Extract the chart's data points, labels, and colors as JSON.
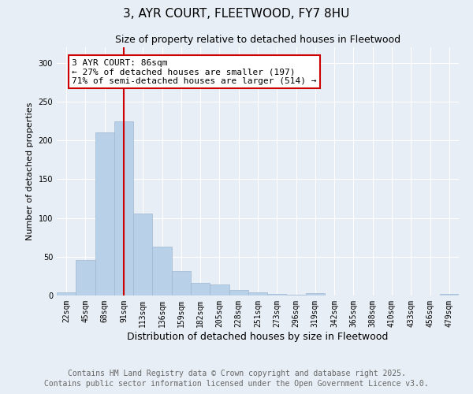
{
  "title": "3, AYR COURT, FLEETWOOD, FY7 8HU",
  "subtitle": "Size of property relative to detached houses in Fleetwood",
  "xlabel": "Distribution of detached houses by size in Fleetwood",
  "ylabel": "Number of detached properties",
  "categories": [
    "22sqm",
    "45sqm",
    "68sqm",
    "91sqm",
    "113sqm",
    "136sqm",
    "159sqm",
    "182sqm",
    "205sqm",
    "228sqm",
    "251sqm",
    "273sqm",
    "296sqm",
    "319sqm",
    "342sqm",
    "365sqm",
    "388sqm",
    "410sqm",
    "433sqm",
    "456sqm",
    "479sqm"
  ],
  "values": [
    4,
    46,
    210,
    225,
    106,
    63,
    32,
    16,
    14,
    7,
    4,
    2,
    1,
    3,
    0,
    0,
    0,
    0,
    0,
    0,
    2
  ],
  "bar_color": "#b8d0e8",
  "bar_edgecolor": "#a0b8d0",
  "property_line_x": 3.0,
  "property_line_color": "#cc0000",
  "annotation_text": "3 AYR COURT: 86sqm\n← 27% of detached houses are smaller (197)\n71% of semi-detached houses are larger (514) →",
  "annotation_box_edgecolor": "#cc0000",
  "annotation_box_facecolor": "#ffffff",
  "ylim": [
    0,
    320
  ],
  "yticks": [
    0,
    50,
    100,
    150,
    200,
    250,
    300
  ],
  "footnote1": "Contains HM Land Registry data © Crown copyright and database right 2025.",
  "footnote2": "Contains public sector information licensed under the Open Government Licence v3.0.",
  "background_color": "#e8eef5",
  "plot_background_color": "#e8eef5",
  "title_fontsize": 11,
  "subtitle_fontsize": 9,
  "annotation_fontsize": 8,
  "tick_fontsize": 7,
  "ylabel_fontsize": 8,
  "xlabel_fontsize": 9,
  "footnote_fontsize": 7,
  "footnote_color": "#666666"
}
